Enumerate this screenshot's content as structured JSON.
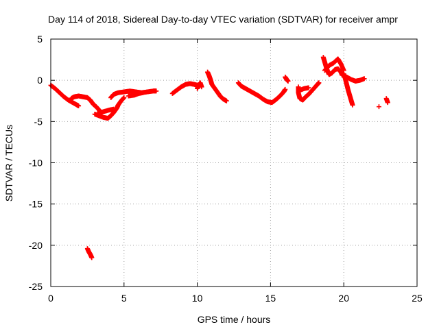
{
  "chart_data": {
    "type": "scatter",
    "title": "Day 114 of 2018, Sidereal Day-to-day VTEC variation (SDTVAR) for receiver ampr",
    "xlabel": "GPS time / hours",
    "ylabel": "SDTVAR / TECUs",
    "xlim": [
      0,
      25
    ],
    "ylim": [
      -25,
      5
    ],
    "xticks": [
      "0",
      "5",
      "10",
      "15",
      "20",
      "25"
    ],
    "yticks": [
      "5",
      "0",
      "-5",
      "-10",
      "-15",
      "-20",
      "-25"
    ],
    "grid": true,
    "marker": "+",
    "color": "#ff0000",
    "series": [
      {
        "name": "SDTVAR",
        "segments": [
          [
            [
              0.0,
              -0.6
            ],
            [
              0.3,
              -1.0
            ],
            [
              0.6,
              -1.5
            ],
            [
              0.9,
              -2.0
            ],
            [
              1.2,
              -2.4
            ],
            [
              1.5,
              -2.7
            ],
            [
              1.8,
              -3.0
            ],
            [
              1.9,
              -3.1
            ]
          ],
          [
            [
              1.4,
              -2.2
            ],
            [
              1.6,
              -2.0
            ],
            [
              1.9,
              -1.9
            ],
            [
              2.2,
              -2.0
            ],
            [
              2.5,
              -2.1
            ],
            [
              2.7,
              -2.4
            ],
            [
              2.9,
              -2.9
            ],
            [
              3.1,
              -3.2
            ],
            [
              3.3,
              -3.6
            ],
            [
              3.4,
              -4.0
            ]
          ],
          [
            [
              3.0,
              -4.1
            ],
            [
              3.3,
              -4.3
            ],
            [
              3.6,
              -4.5
            ],
            [
              3.9,
              -4.6
            ],
            [
              4.1,
              -4.3
            ],
            [
              4.3,
              -3.9
            ],
            [
              4.5,
              -3.4
            ],
            [
              4.6,
              -3.0
            ],
            [
              4.8,
              -2.5
            ],
            [
              5.0,
              -2.1
            ]
          ],
          [
            [
              3.2,
              -4.0
            ],
            [
              3.6,
              -3.8
            ],
            [
              4.0,
              -3.6
            ],
            [
              4.3,
              -3.5
            ]
          ],
          [
            [
              4.1,
              -2.1
            ],
            [
              4.3,
              -1.7
            ],
            [
              4.6,
              -1.5
            ],
            [
              5.0,
              -1.4
            ],
            [
              5.4,
              -1.3
            ],
            [
              5.8,
              -1.4
            ],
            [
              6.2,
              -1.5
            ],
            [
              6.6,
              -1.4
            ],
            [
              7.0,
              -1.3
            ],
            [
              7.2,
              -1.3
            ]
          ],
          [
            [
              5.3,
              -1.9
            ],
            [
              5.7,
              -1.8
            ],
            [
              6.0,
              -1.6
            ],
            [
              6.3,
              -1.5
            ]
          ],
          [
            [
              8.3,
              -1.6
            ],
            [
              8.6,
              -1.2
            ],
            [
              8.9,
              -0.8
            ],
            [
              9.2,
              -0.5
            ],
            [
              9.5,
              -0.4
            ],
            [
              9.8,
              -0.5
            ],
            [
              10.0,
              -0.6
            ]
          ],
          [
            [
              10.0,
              -1.0
            ],
            [
              10.1,
              -0.6
            ],
            [
              10.2,
              -0.3
            ],
            [
              10.3,
              -0.8
            ]
          ],
          [
            [
              10.7,
              1.0
            ],
            [
              10.8,
              0.6
            ],
            [
              10.9,
              0.1
            ],
            [
              11.0,
              -0.5
            ],
            [
              11.2,
              -1.0
            ],
            [
              11.4,
              -1.5
            ],
            [
              11.6,
              -2.0
            ],
            [
              11.8,
              -2.3
            ],
            [
              12.0,
              -2.5
            ]
          ],
          [
            [
              12.8,
              -0.3
            ],
            [
              13.0,
              -0.7
            ],
            [
              13.3,
              -1.0
            ],
            [
              13.6,
              -1.3
            ],
            [
              13.9,
              -1.6
            ],
            [
              14.2,
              -1.9
            ],
            [
              14.5,
              -2.3
            ],
            [
              14.8,
              -2.6
            ],
            [
              15.1,
              -2.7
            ],
            [
              15.4,
              -2.3
            ],
            [
              15.7,
              -1.8
            ],
            [
              15.9,
              -1.4
            ],
            [
              16.0,
              -1.1
            ]
          ],
          [
            [
              16.0,
              0.4
            ],
            [
              16.1,
              0.1
            ],
            [
              16.2,
              -0.1
            ]
          ],
          [
            [
              16.9,
              -0.8
            ],
            [
              16.9,
              -1.5
            ],
            [
              17.0,
              -2.2
            ],
            [
              17.2,
              -2.4
            ],
            [
              17.4,
              -2.0
            ],
            [
              17.6,
              -1.7
            ],
            [
              17.8,
              -1.3
            ],
            [
              18.0,
              -0.9
            ],
            [
              18.2,
              -0.5
            ],
            [
              18.3,
              -0.3
            ]
          ],
          [
            [
              17.0,
              -1.2
            ],
            [
              17.3,
              -1.0
            ],
            [
              17.6,
              -0.9
            ]
          ],
          [
            [
              18.6,
              2.8
            ],
            [
              18.7,
              2.2
            ],
            [
              18.8,
              1.6
            ],
            [
              18.9,
              1.1
            ],
            [
              19.0,
              0.7
            ],
            [
              19.2,
              0.9
            ],
            [
              19.4,
              1.3
            ],
            [
              19.6,
              1.4
            ],
            [
              19.8,
              1.0
            ],
            [
              19.9,
              0.6
            ]
          ],
          [
            [
              18.7,
              1.2
            ],
            [
              19.0,
              1.8
            ],
            [
              19.3,
              2.1
            ],
            [
              19.6,
              2.6
            ],
            [
              19.8,
              2.0
            ],
            [
              20.0,
              1.2
            ]
          ],
          [
            [
              20.0,
              0.8
            ],
            [
              20.1,
              0.2
            ],
            [
              20.2,
              -0.5
            ],
            [
              20.3,
              -1.2
            ],
            [
              20.4,
              -1.8
            ],
            [
              20.5,
              -2.4
            ],
            [
              20.6,
              -3.0
            ]
          ],
          [
            [
              20.2,
              0.4
            ],
            [
              20.5,
              0.1
            ],
            [
              20.8,
              -0.1
            ],
            [
              21.1,
              0.0
            ],
            [
              21.4,
              0.2
            ]
          ],
          [
            [
              22.4,
              -3.2
            ]
          ],
          [
            [
              22.9,
              -2.2
            ],
            [
              23.0,
              -2.7
            ]
          ],
          [
            [
              2.5,
              -20.4
            ],
            [
              2.6,
              -20.8
            ],
            [
              2.7,
              -21.1
            ],
            [
              2.8,
              -21.5
            ]
          ]
        ]
      }
    ]
  }
}
